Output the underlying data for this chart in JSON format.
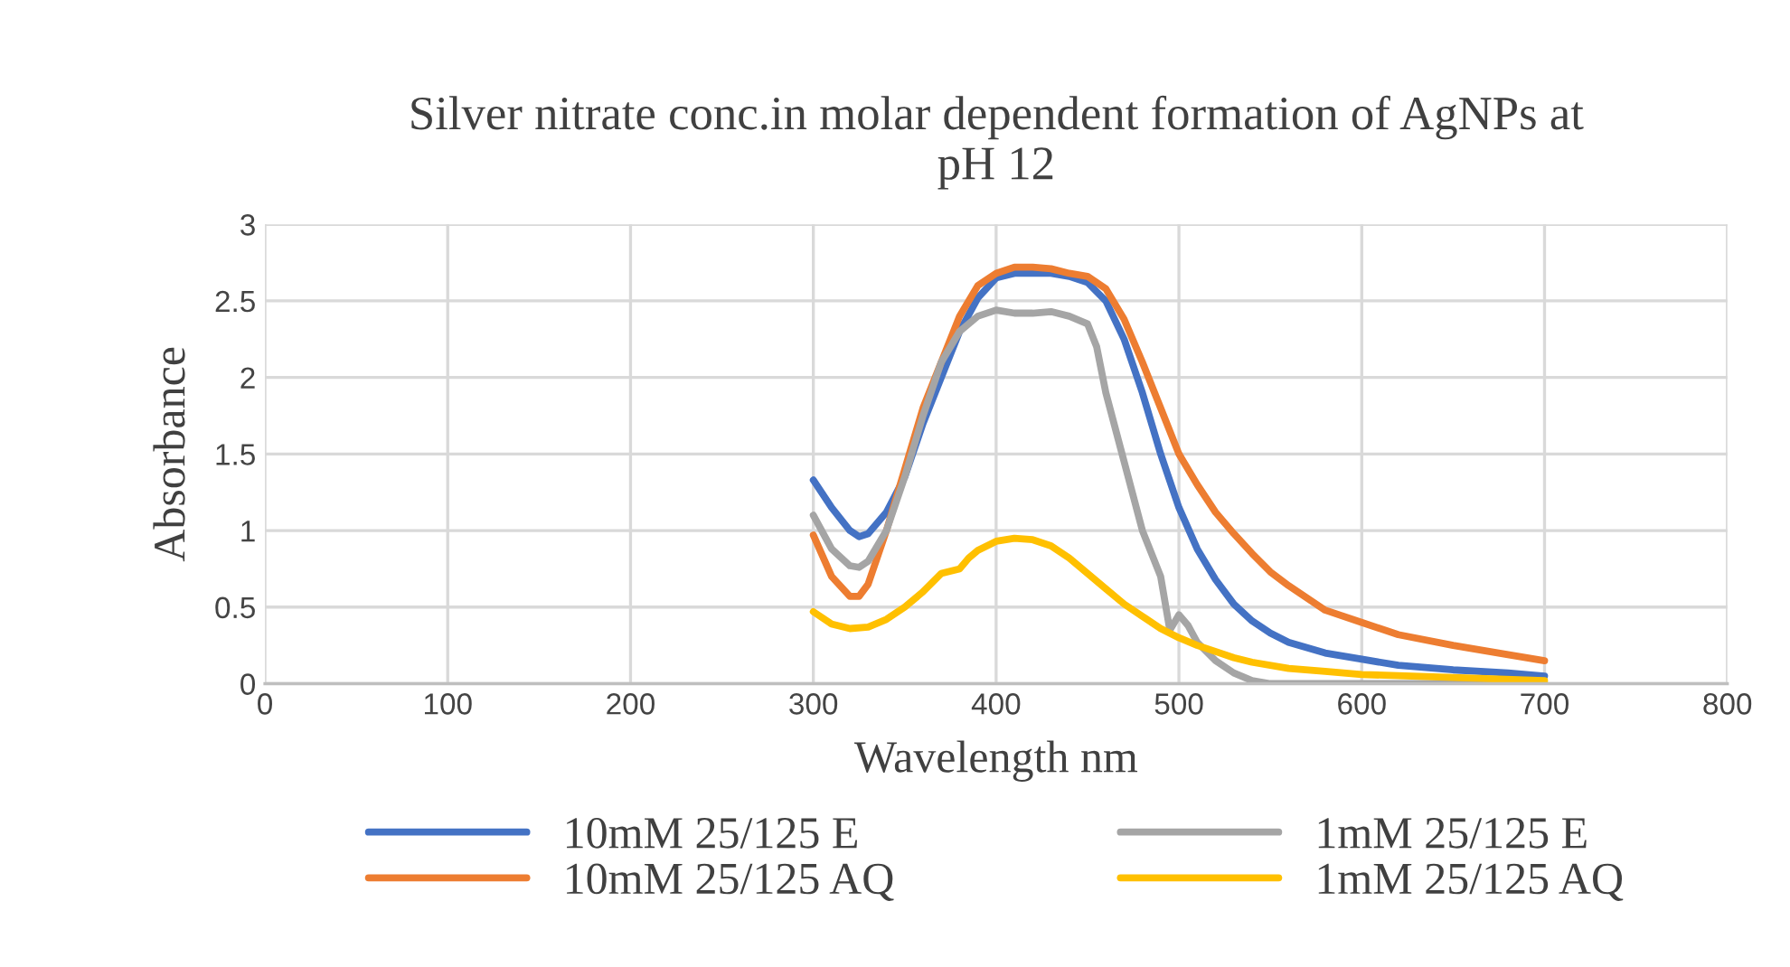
{
  "chart_data": {
    "type": "line",
    "title": "Silver nitrate conc.in molar dependent formation of AgNPs at\npH 12",
    "xlabel": "Wavelength nm",
    "ylabel": "Absorbance",
    "xlim": [
      0,
      800
    ],
    "xticks": [
      0,
      100,
      200,
      300,
      400,
      500,
      600,
      700,
      800
    ],
    "ylim": [
      0,
      3
    ],
    "yticks": [
      0,
      0.5,
      1,
      1.5,
      2,
      2.5,
      3
    ],
    "grid": true,
    "legend": "bottom",
    "marker": "none",
    "line_style": "solid",
    "series": [
      {
        "name": "10mM 25/125 E",
        "color": "#4472c4",
        "x": [
          300,
          310,
          320,
          325,
          330,
          340,
          350,
          360,
          370,
          380,
          390,
          400,
          410,
          420,
          430,
          440,
          450,
          460,
          470,
          480,
          490,
          500,
          510,
          520,
          530,
          540,
          550,
          560,
          580,
          600,
          620,
          650,
          680,
          700
        ],
        "values": [
          1.33,
          1.15,
          1.0,
          0.96,
          0.98,
          1.12,
          1.35,
          1.7,
          2.0,
          2.3,
          2.52,
          2.65,
          2.68,
          2.68,
          2.68,
          2.66,
          2.62,
          2.5,
          2.25,
          1.9,
          1.5,
          1.15,
          0.88,
          0.68,
          0.52,
          0.41,
          0.33,
          0.27,
          0.2,
          0.16,
          0.12,
          0.09,
          0.07,
          0.05
        ]
      },
      {
        "name": "10mM 25/125 AQ",
        "color": "#ed7d31",
        "x": [
          300,
          310,
          320,
          325,
          330,
          340,
          350,
          360,
          370,
          380,
          390,
          400,
          410,
          420,
          430,
          440,
          450,
          460,
          470,
          480,
          490,
          500,
          510,
          520,
          530,
          540,
          550,
          560,
          580,
          600,
          620,
          650,
          680,
          700
        ],
        "values": [
          0.97,
          0.7,
          0.57,
          0.57,
          0.65,
          1.0,
          1.4,
          1.8,
          2.1,
          2.4,
          2.6,
          2.68,
          2.72,
          2.72,
          2.71,
          2.68,
          2.66,
          2.58,
          2.38,
          2.1,
          1.8,
          1.5,
          1.3,
          1.12,
          0.98,
          0.85,
          0.73,
          0.64,
          0.48,
          0.4,
          0.32,
          0.25,
          0.19,
          0.15
        ]
      },
      {
        "name": "1mM 25/125 E",
        "color": "#a5a5a5",
        "x": [
          300,
          310,
          320,
          325,
          330,
          340,
          350,
          360,
          370,
          380,
          390,
          400,
          410,
          420,
          430,
          440,
          450,
          455,
          460,
          470,
          480,
          490,
          495,
          500,
          505,
          510,
          520,
          530,
          540,
          550,
          600,
          700
        ],
        "values": [
          1.1,
          0.88,
          0.77,
          0.76,
          0.8,
          1.0,
          1.35,
          1.75,
          2.1,
          2.3,
          2.4,
          2.44,
          2.42,
          2.42,
          2.43,
          2.4,
          2.35,
          2.2,
          1.9,
          1.45,
          1.0,
          0.7,
          0.35,
          0.45,
          0.38,
          0.27,
          0.15,
          0.07,
          0.02,
          0.0,
          0.0,
          0.0
        ]
      },
      {
        "name": "1mM 25/125 AQ",
        "color": "#ffc000",
        "x": [
          300,
          310,
          320,
          330,
          340,
          350,
          360,
          370,
          380,
          385,
          390,
          400,
          410,
          420,
          430,
          440,
          450,
          460,
          470,
          480,
          490,
          500,
          510,
          520,
          530,
          540,
          560,
          580,
          600,
          650,
          700
        ],
        "values": [
          0.47,
          0.39,
          0.36,
          0.37,
          0.42,
          0.5,
          0.6,
          0.72,
          0.75,
          0.82,
          0.87,
          0.93,
          0.95,
          0.94,
          0.9,
          0.82,
          0.72,
          0.62,
          0.52,
          0.44,
          0.36,
          0.3,
          0.25,
          0.21,
          0.17,
          0.14,
          0.1,
          0.08,
          0.06,
          0.04,
          0.02
        ]
      }
    ]
  }
}
